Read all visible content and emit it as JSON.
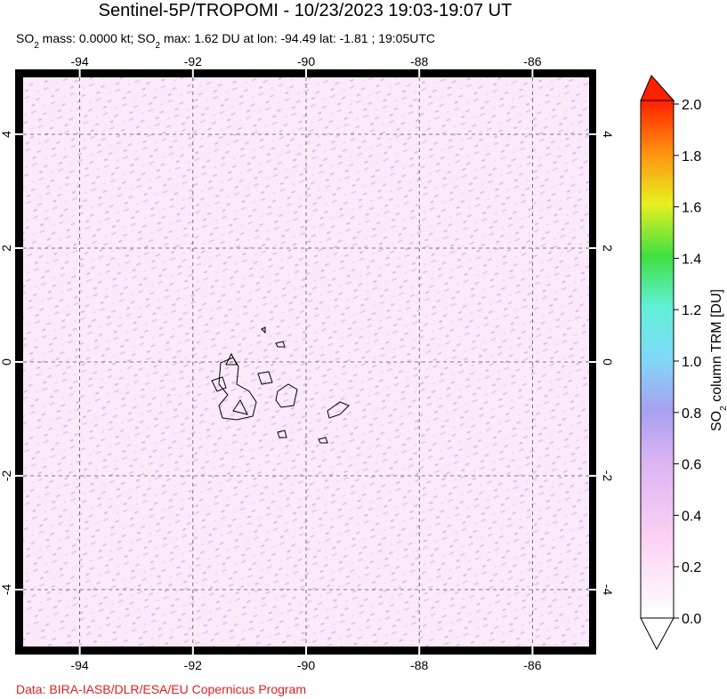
{
  "header": {
    "title": "Sentinel-5P/TROPOMI - 10/23/2023 19:03-19:07 UT",
    "subtitle": [
      "SO",
      "2",
      " mass: 0.0000 kt; SO",
      "2",
      " max: 1.62 DU at lon: -94.49 lat: -1.81 ; 19:05UTC"
    ]
  },
  "map": {
    "xlim": [
      -95,
      -85
    ],
    "ylim": [
      -5,
      5
    ],
    "xticks": [
      -94,
      -92,
      -90,
      -88,
      -86
    ],
    "yticks": [
      -4,
      -2,
      0,
      2,
      4
    ],
    "grid": true
  },
  "colorbar": {
    "label": [
      "SO",
      "2",
      " column TRM [DU]"
    ],
    "lim": [
      0,
      2
    ],
    "ticks": [
      {
        "value": 0,
        "label": "0.0"
      },
      {
        "value": 0.2,
        "label": "0.2"
      },
      {
        "value": 0.4,
        "label": "0.4"
      },
      {
        "value": 0.6,
        "label": "0.6"
      },
      {
        "value": 0.8,
        "label": "0.8"
      },
      {
        "value": 1,
        "label": "1.0"
      },
      {
        "value": 1.2,
        "label": "1.2"
      },
      {
        "value": 1.4,
        "label": "1.4"
      },
      {
        "value": 1.6,
        "label": "1.6"
      },
      {
        "value": 1.8,
        "label": "1.8"
      },
      {
        "value": 2,
        "label": "2.0"
      }
    ]
  },
  "footer": {
    "credit": "Data: BIRA-IASB/DLR/ESA/EU Copernicus Program"
  }
}
